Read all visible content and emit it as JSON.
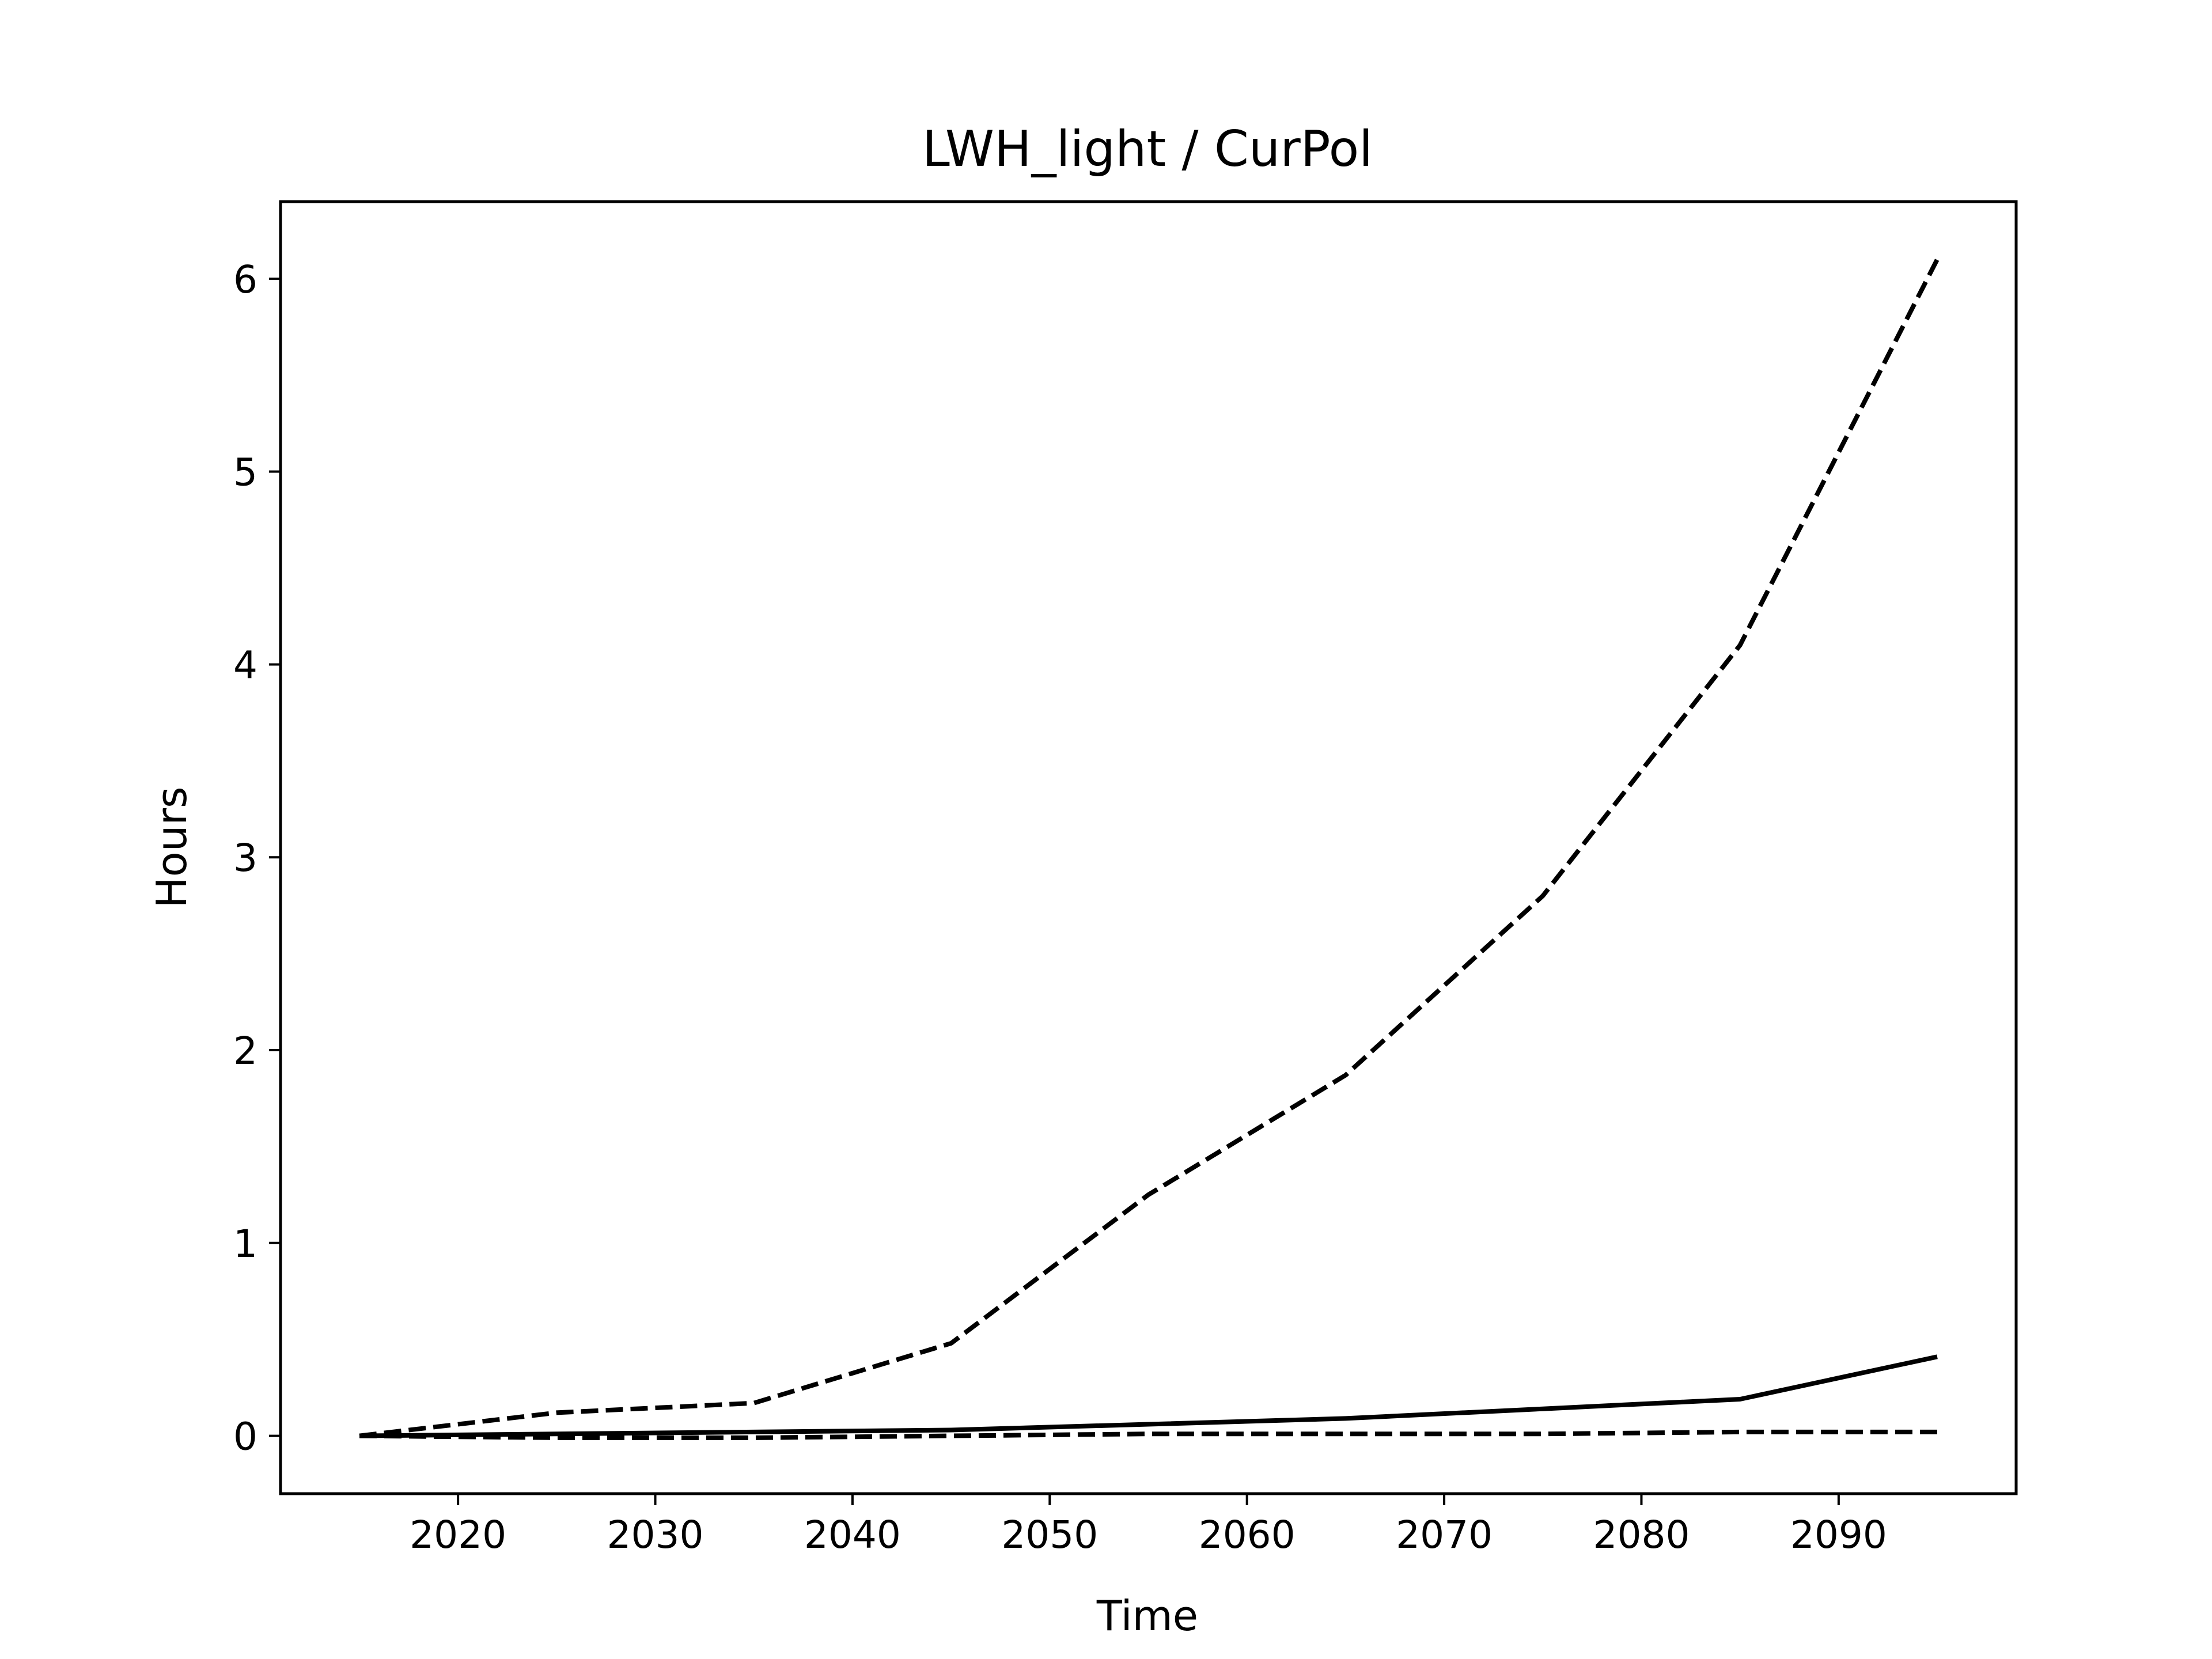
{
  "chart_data": {
    "type": "line",
    "title": "LWH_light / CurPol",
    "xlabel": "Time",
    "ylabel": "Hours",
    "xlim": [
      2011,
      2099
    ],
    "ylim": [
      -0.3,
      6.4
    ],
    "xticks": [
      2020,
      2030,
      2040,
      2050,
      2060,
      2070,
      2080,
      2090
    ],
    "yticks": [
      0,
      1,
      2,
      3,
      4,
      5,
      6
    ],
    "grid": false,
    "legend": "none",
    "series": [
      {
        "style": "dashed",
        "color": "#000000",
        "x": [
          2015,
          2025,
          2035,
          2045,
          2055,
          2065,
          2075,
          2085,
          2095
        ],
        "y": [
          0.0,
          0.12,
          0.17,
          0.48,
          1.25,
          1.87,
          2.8,
          4.1,
          6.1
        ]
      },
      {
        "style": "solid",
        "color": "#000000",
        "x": [
          2015,
          2025,
          2035,
          2045,
          2055,
          2065,
          2075,
          2085,
          2095
        ],
        "y": [
          0.0,
          0.01,
          0.02,
          0.03,
          0.06,
          0.09,
          0.14,
          0.19,
          0.41
        ]
      },
      {
        "style": "dashed",
        "color": "#000000",
        "x": [
          2015,
          2025,
          2035,
          2045,
          2055,
          2065,
          2075,
          2085,
          2095
        ],
        "y": [
          0.0,
          -0.01,
          -0.01,
          0.0,
          0.01,
          0.01,
          0.01,
          0.02,
          0.02
        ]
      }
    ]
  }
}
